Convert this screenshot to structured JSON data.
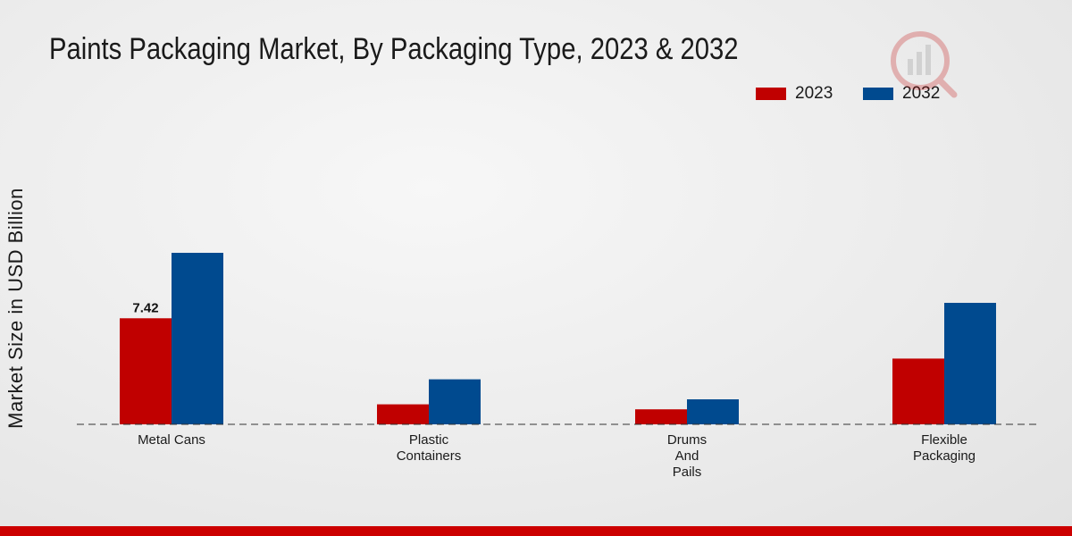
{
  "header": {
    "title": "Paints Packaging Market, By Packaging Type, 2023 & 2032"
  },
  "colors": {
    "series_2023": "#c00000",
    "series_2032": "#004a8f",
    "bottom_bar": "#cc0000"
  },
  "chart_data": {
    "type": "bar",
    "title": "Paints Packaging Market, By Packaging Type, 2023 & 2032",
    "xlabel": "",
    "ylabel": "Market Size in USD Billion",
    "categories": [
      "Metal Cans",
      "Plastic Containers",
      "Drums And Pails",
      "Flexible Packaging"
    ],
    "category_lines": [
      [
        "Metal Cans"
      ],
      [
        "Plastic",
        "Containers"
      ],
      [
        "Drums",
        "And",
        "Pails"
      ],
      [
        "Flexible",
        "Packaging"
      ]
    ],
    "series": [
      {
        "name": "2023",
        "color": "#c00000",
        "values": [
          7.42,
          1.4,
          1.05,
          4.6
        ]
      },
      {
        "name": "2032",
        "color": "#004a8f",
        "values": [
          12.0,
          3.15,
          1.75,
          8.5
        ]
      }
    ],
    "data_labels": [
      {
        "series": 0,
        "index": 0,
        "text": "7.42"
      }
    ],
    "ylim": [
      0,
      20
    ],
    "grid": false,
    "legend_position": "top-right"
  }
}
